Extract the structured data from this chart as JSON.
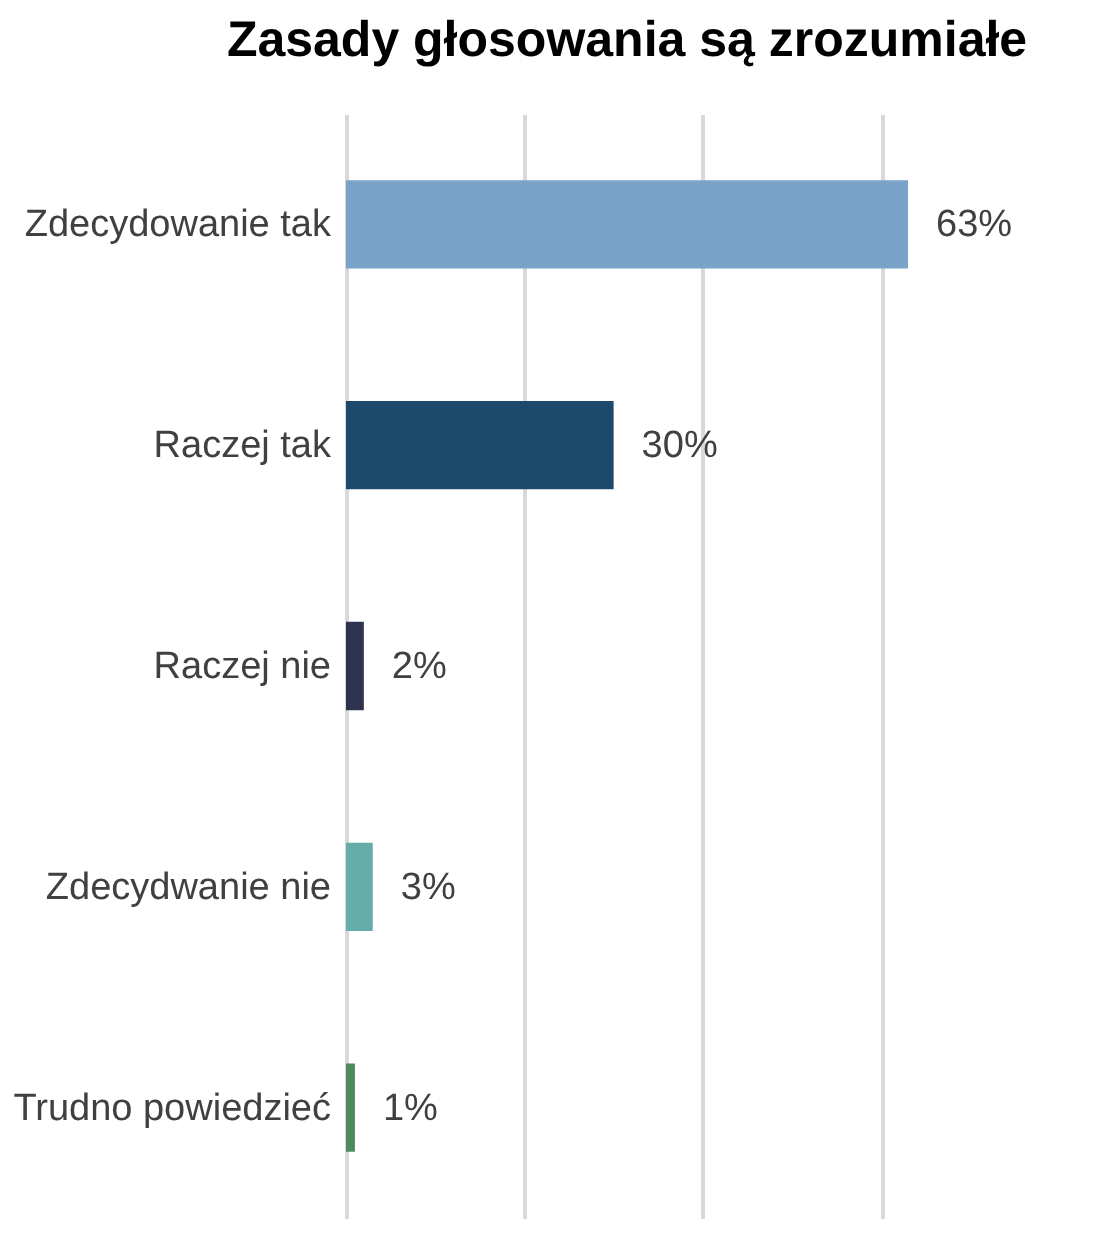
{
  "chart_data": {
    "type": "bar",
    "orientation": "horizontal",
    "title": "Zasady głosowania są zrozumiałe",
    "categories": [
      "Zdecydowanie tak",
      "Raczej tak",
      "Raczej nie",
      "Zdecydwanie nie",
      "Trudno powiedzieć"
    ],
    "values": [
      63,
      30,
      2,
      3,
      1
    ],
    "value_labels": [
      "63%",
      "30%",
      "2%",
      "3%",
      "1%"
    ],
    "colors": [
      "#7ba3c9",
      "#1d4a6b",
      "#2e3350",
      "#66ada9",
      "#4e8a5c"
    ],
    "xticks": [
      {
        "value": 0,
        "label": null
      },
      {
        "value": 20,
        "label": null
      },
      {
        "value": 40,
        "label": null
      },
      {
        "value": 60,
        "label": null
      }
    ],
    "grid": "x",
    "tick_labels": "y"
  }
}
